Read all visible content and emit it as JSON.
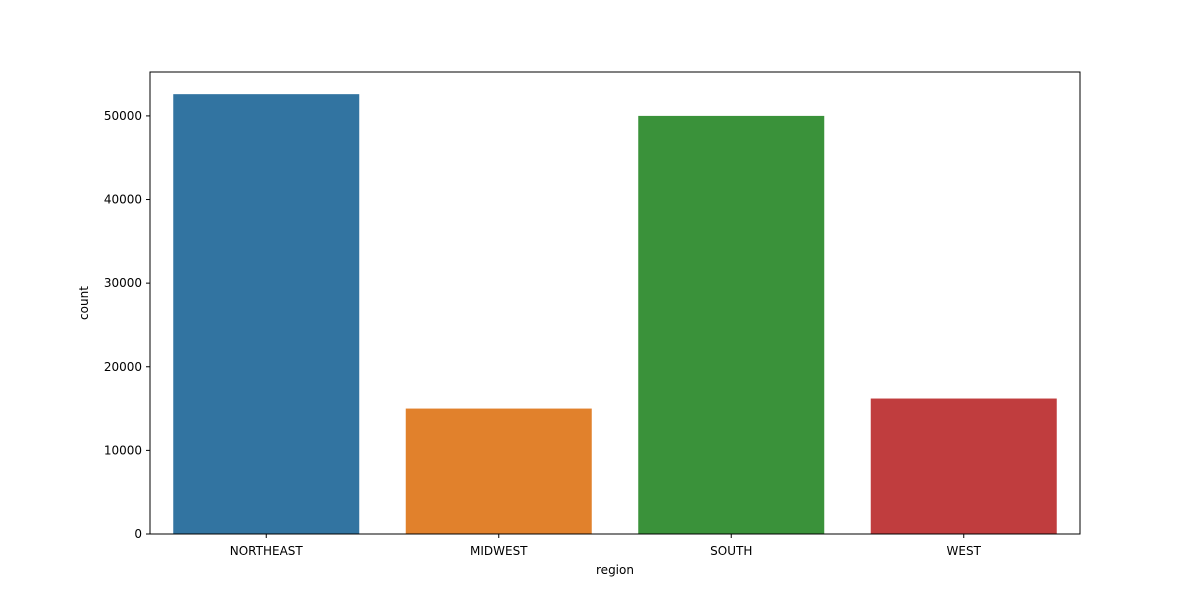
{
  "chart_data": {
    "type": "bar",
    "title": "",
    "xlabel": "region",
    "ylabel": "count",
    "categories": [
      "NORTHEAST",
      "MIDWEST",
      "SOUTH",
      "WEST"
    ],
    "values": [
      52600,
      15000,
      50000,
      16200
    ],
    "colors": [
      "#3274a1",
      "#e1812c",
      "#3a923a",
      "#c03d3e"
    ],
    "ylim": [
      0,
      55250
    ],
    "yticks": [
      0,
      10000,
      20000,
      30000,
      40000,
      50000
    ],
    "grid": false,
    "legend": "none"
  }
}
